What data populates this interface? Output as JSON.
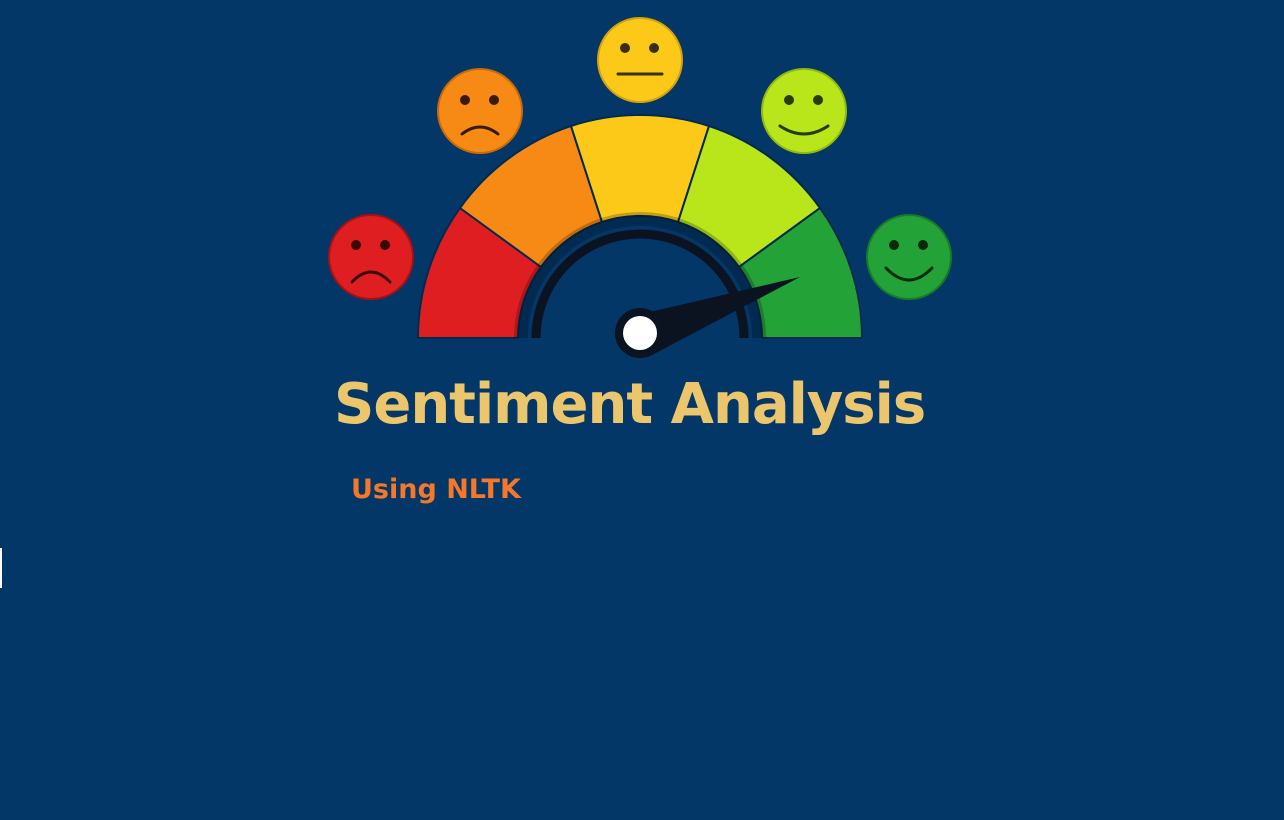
{
  "title": "Sentiment Analysis",
  "subtitle": "Using NLTK",
  "colors": {
    "background": "#023768",
    "title": "#ecc66d",
    "subtitle": "#f5782a",
    "very_negative": "#df1e21",
    "negative": "#f68a14",
    "neutral": "#fcc919",
    "positive": "#b9e61a",
    "very_positive": "#22a237"
  },
  "faces": [
    {
      "name": "very-sad-face-icon",
      "mood": "very negative"
    },
    {
      "name": "sad-face-icon",
      "mood": "negative"
    },
    {
      "name": "neutral-face-icon",
      "mood": "neutral"
    },
    {
      "name": "smile-face-icon",
      "mood": "positive"
    },
    {
      "name": "big-smile-face-icon",
      "mood": "very positive"
    }
  ],
  "gauge": {
    "segments": [
      "very negative",
      "negative",
      "neutral",
      "positive",
      "very positive"
    ],
    "needle_fraction": 0.88
  }
}
